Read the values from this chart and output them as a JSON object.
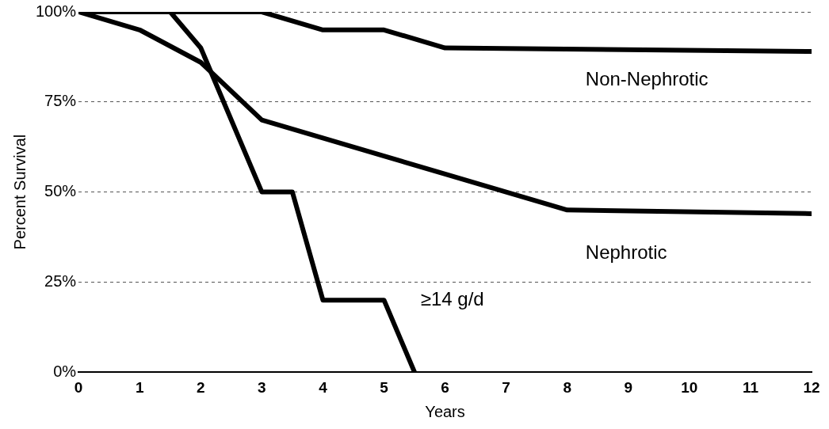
{
  "chart_data": {
    "type": "line",
    "xlabel": "Years",
    "ylabel": "Percent Survival",
    "xlim": [
      0,
      12
    ],
    "xticks": [
      0,
      1,
      2,
      3,
      4,
      5,
      6,
      7,
      8,
      9,
      10,
      11,
      12
    ],
    "ylim": [
      0,
      100
    ],
    "yticks": [
      {
        "value": 0,
        "label": "0%"
      },
      {
        "value": 25,
        "label": "25%"
      },
      {
        "value": 50,
        "label": "50%"
      },
      {
        "value": 75,
        "label": "75%"
      },
      {
        "value": 100,
        "label": "100%"
      }
    ],
    "grid": "y",
    "legend": false,
    "marker": "none",
    "line_style": "solid",
    "series": [
      {
        "name": "Non-Nephrotic",
        "color": "#000000",
        "x": [
          0,
          3,
          4,
          5,
          6,
          12
        ],
        "values": [
          100,
          100,
          95,
          95,
          90,
          89
        ]
      },
      {
        "name": "Nephrotic",
        "color": "#000000",
        "x": [
          0,
          1,
          2,
          3,
          4,
          5,
          6,
          7,
          8,
          12
        ],
        "values": [
          100,
          95,
          86,
          70,
          65,
          60,
          55,
          50,
          45,
          44
        ]
      },
      {
        "name": "≥14 g/d",
        "color": "#000000",
        "x": [
          0,
          1.5,
          2,
          3,
          3.5,
          4,
          5,
          5.5
        ],
        "values": [
          100,
          100,
          90,
          50,
          50,
          20,
          20,
          0
        ]
      }
    ]
  }
}
